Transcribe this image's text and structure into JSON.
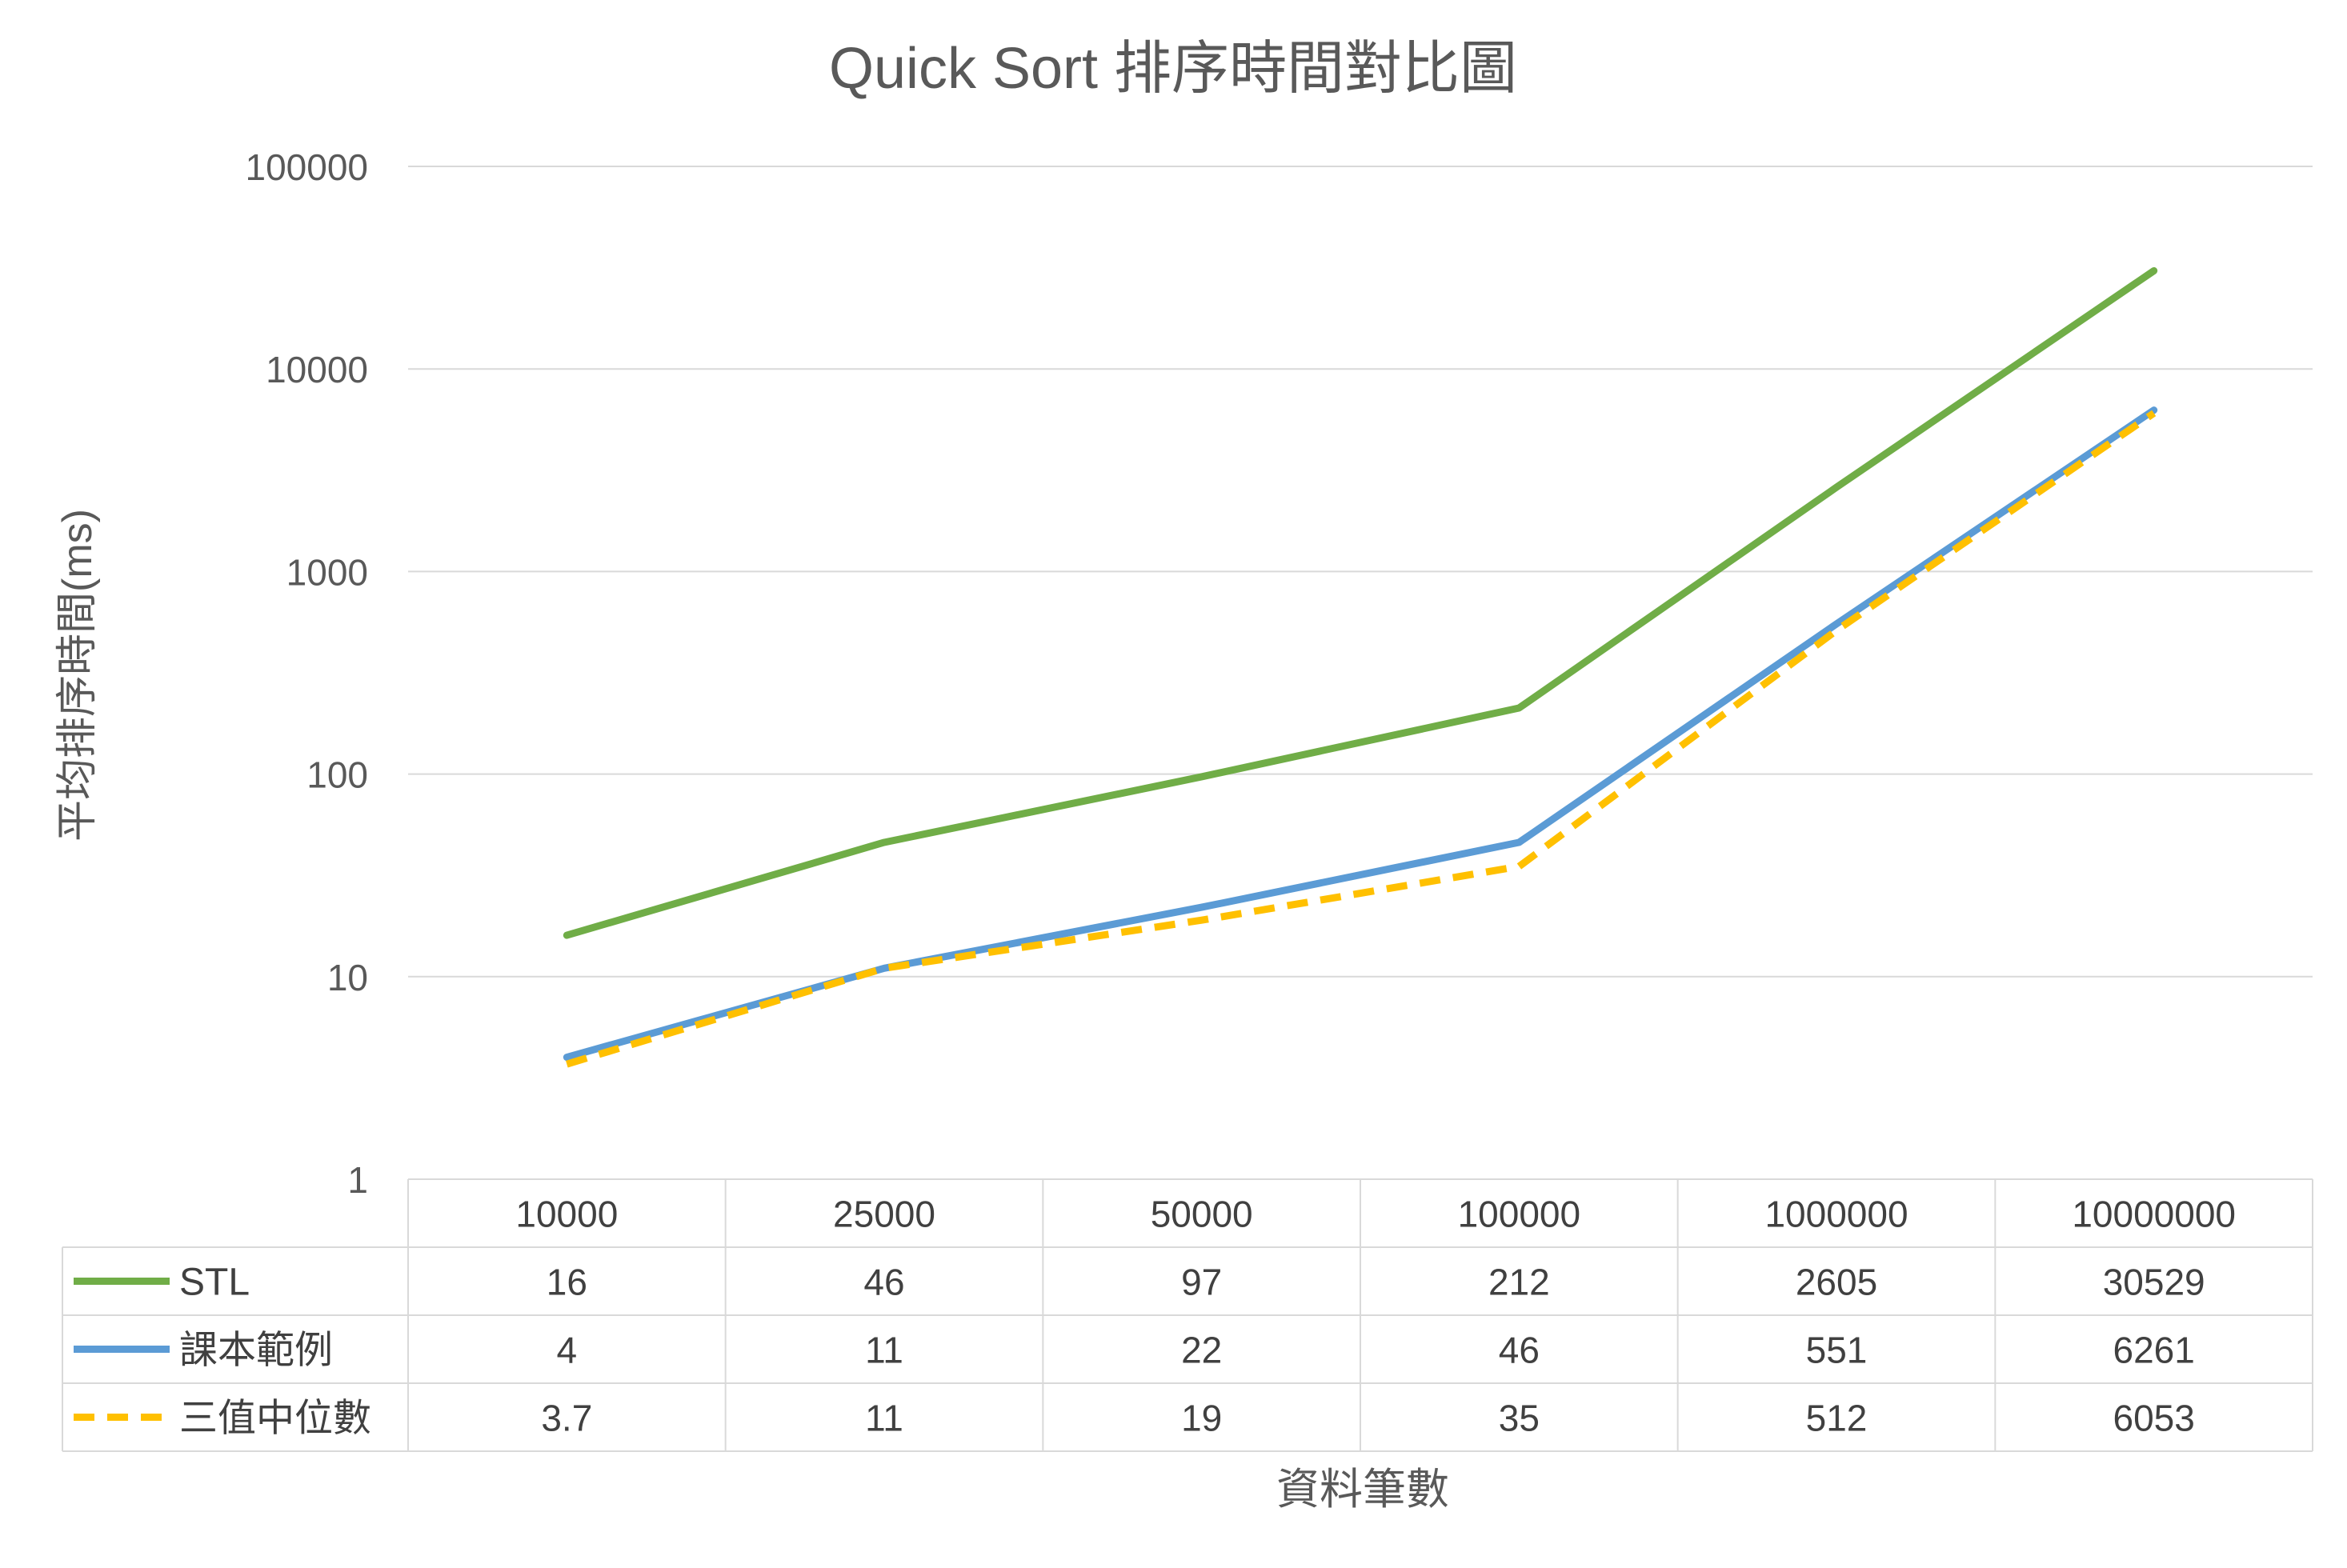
{
  "chart_data": {
    "type": "line",
    "title": "Quick Sort 排序時間對比圖",
    "xlabel": "資料筆數",
    "ylabel": "平均排序時間(ms)",
    "yscale": "log",
    "ylim": [
      1,
      100000
    ],
    "yticks": [
      "100000",
      "10000",
      "1000",
      "100",
      "10",
      "1"
    ],
    "grid": true,
    "legend": "data-table",
    "categories": [
      "10000",
      "25000",
      "50000",
      "100000",
      "1000000",
      "10000000"
    ],
    "series": [
      {
        "name": "STL",
        "color": "#70ad47",
        "dash": "solid",
        "values": [
          16,
          46,
          97,
          212,
          2605,
          30529
        ],
        "labels": [
          "16",
          "46",
          "97",
          "212",
          "2605",
          "30529"
        ]
      },
      {
        "name": "課本範例",
        "color": "#5b9bd5",
        "dash": "solid",
        "values": [
          4,
          11,
          22,
          46,
          551,
          6261
        ],
        "labels": [
          "4",
          "11",
          "22",
          "46",
          "551",
          "6261"
        ]
      },
      {
        "name": "三值中位數",
        "color": "#ffc000",
        "dash": "dashed",
        "values": [
          3.7,
          11,
          19,
          35,
          512,
          6053
        ],
        "labels": [
          "3.7",
          "11",
          "19",
          "35",
          "512",
          "6053"
        ]
      }
    ]
  }
}
